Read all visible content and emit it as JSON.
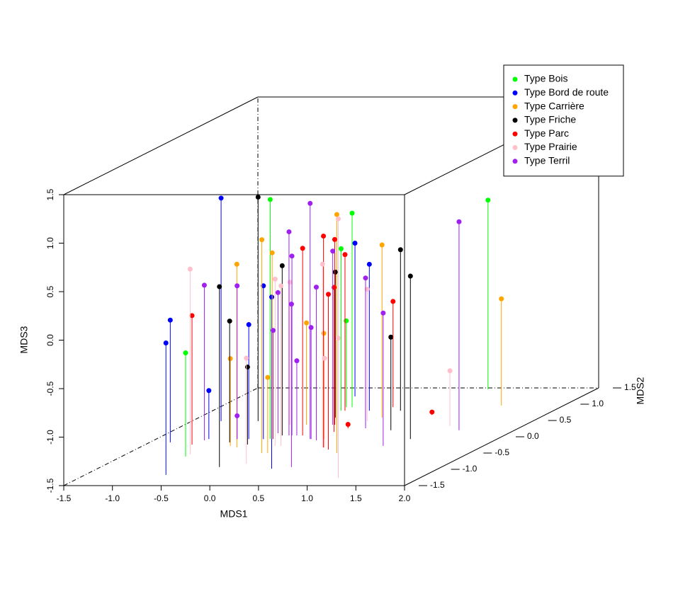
{
  "chart_data": {
    "type": "scatter3d",
    "xlabel": "MDS1",
    "ylabel": "MDS2",
    "zlabel": "MDS3",
    "xlim": [
      -1.5,
      2.0
    ],
    "ylim": [
      -1.5,
      1.5
    ],
    "zlim": [
      -1.5,
      1.5
    ],
    "xticks": [
      -1.5,
      {
        "value": -1,
        "label": "-1.0"
      },
      -0.5,
      {
        "value": 0,
        "label": "0.0"
      },
      0.5,
      {
        "value": 1,
        "label": "1.0"
      },
      1.5,
      {
        "value": 2,
        "label": "2.0"
      }
    ],
    "yticks": [
      -1.5,
      {
        "value": -1,
        "label": "-1.0"
      },
      -0.5,
      {
        "value": 0,
        "label": "0.0"
      },
      0.5,
      {
        "value": 1,
        "label": "1.0"
      },
      1.5
    ],
    "zticks": [
      -1.5,
      {
        "value": -1,
        "label": "-1.0"
      },
      -0.5,
      {
        "value": 0,
        "label": "0.0"
      },
      0.5,
      {
        "value": 1,
        "label": "1.0"
      },
      1.5
    ],
    "legend": "topright",
    "series": [
      {
        "name": "Type Bois",
        "color": "#00ff00",
        "x": [
          -0.84,
          -0.33,
          -0.14,
          -0.18,
          -0.2,
          0.89
        ],
        "y": [
          -0.61,
          -0.07,
          0.91,
          0.8,
          0.91,
          1.46
        ],
        "z": [
          -0.43,
          0.97,
          0.5,
          0.17,
          -0.61,
          0.45
        ]
      },
      {
        "name": "Type Bord de route",
        "color": "#0000ff",
        "x": [
          -0.67,
          -1.29,
          -1.2,
          -0.96,
          -0.55,
          -0.4,
          0.29,
          -0.33,
          0.11
        ],
        "y": [
          -1.17,
          -0.17,
          0.48,
          -0.07,
          -0.07,
          -0.07,
          -0.98,
          1.24,
          0.8
        ],
        "z": [
          -0.14,
          -0.24,
          0.8,
          -1.0,
          -0.32,
          0.08,
          0.27,
          0.08,
          0.01
        ]
      },
      {
        "name": "Type Carrière",
        "color": "#ffa500",
        "x": [
          0.64,
          -0.13,
          -0.31,
          -0.5,
          -0.6,
          -0.07,
          -0.25,
          0.22,
          0.38,
          1.36
        ],
        "y": [
          -0.5,
          -0.5,
          -0.07,
          -0.33,
          -0.28,
          -0.5,
          0.37,
          -0.07,
          0.59,
          0.96
        ],
        "z": [
          0.96,
          0.7,
          0.42,
          0.39,
          -0.6,
          -0.72,
          -0.45,
          -0.41,
          0.28,
          -0.4
        ]
      },
      {
        "name": "Type Friche",
        "color": "#000000",
        "x": [
          -0.82,
          -0.28,
          -0.68,
          -0.45,
          -0.28,
          -0.1,
          0.43,
          1.11,
          0.73
        ],
        "y": [
          0.48,
          -0.93,
          -0.17,
          -0.24,
          0.04,
          0.59,
          0.8,
          -0.07,
          0.2
        ],
        "z": [
          0.81,
          0.36,
          -0.25,
          -0.7,
          0.25,
          0.0,
          0.16,
          0.18,
          -0.54
        ]
      },
      {
        "name": "Type Parc",
        "color": "#ff0000",
        "x": [
          -1.02,
          -0.07,
          0.39,
          0.04,
          -0.14,
          0.48,
          0.18,
          0.25,
          0.28,
          0.84
        ],
        "y": [
          -0.24,
          0.04,
          -0.33,
          0.37,
          0.8,
          -0.39,
          0.15,
          0.26,
          0.91,
          0.67
        ],
        "z": [
          -0.17,
          0.43,
          0.68,
          0.41,
          0.11,
          0.1,
          -0.01,
          -1.46,
          -0.41,
          -1.47
        ]
      },
      {
        "name": "Type Prairie",
        "color": "#ffc0cb",
        "x": [
          -0.84,
          -0.07,
          -0.14,
          -0.08,
          -0.42,
          0.38,
          0.4,
          1.16,
          1.16,
          0.3,
          1.25
        ],
        "y": [
          -0.54,
          -0.83,
          -0.28,
          -0.28,
          0.37,
          -0.33,
          -0.33,
          -1.26,
          -1.26,
          0.48,
          0.33
        ],
        "z": [
          0.41,
          -0.41,
          0.22,
          0.15,
          -0.03,
          0.39,
          -0.58,
          1.17,
          -0.06,
          -0.14,
          -0.93
        ]
      },
      {
        "name": "Type Terril",
        "color": "#a020f0",
        "x": [
          -0.98,
          -0.67,
          -0.67,
          -0.3,
          -0.37,
          -0.21,
          0.46,
          -0.18,
          -0.13,
          0.08,
          0.09,
          0.17,
          0.02,
          0.43,
          0.97,
          1.43
        ],
        "y": [
          -0.11,
          -0.07,
          -0.07,
          -0.07,
          0.11,
          0.04,
          -0.93,
          0.04,
          0.04,
          -0.07,
          -0.07,
          -0.11,
          0.37,
          0.26,
          -0.28,
          0.2
        ],
        "z": [
          0.1,
          0.08,
          -1.26,
          -0.38,
          -0.05,
          0.6,
          0.18,
          0.35,
          -0.73,
          0.93,
          -0.35,
          0.08,
          0.29,
          0.05,
          -0.13,
          0.65
        ]
      }
    ]
  }
}
